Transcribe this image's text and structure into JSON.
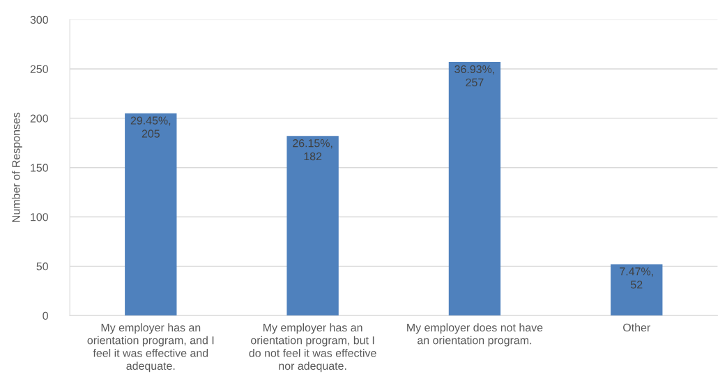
{
  "chart_data": {
    "type": "bar",
    "ylabel": "Number of Responses",
    "categories": [
      "My employer has an\norientation program, and I\nfeel it was effective and\nadequate.",
      "My employer has an\norientation program, but I\ndo not feel it was effective\nnor adequate.",
      "My employer does not have\nan orientation program.",
      "Other"
    ],
    "values": [
      205,
      182,
      257,
      52
    ],
    "color": "#4f81bd",
    "value_labels": [
      "29.45%,\n205",
      "26.15%,\n182",
      "36.93%,\n257",
      "7.47%,\n52"
    ],
    "ylim": [
      0,
      300
    ],
    "yticks": [
      0,
      50,
      100,
      150,
      200,
      250,
      300
    ],
    "grid": "y"
  }
}
